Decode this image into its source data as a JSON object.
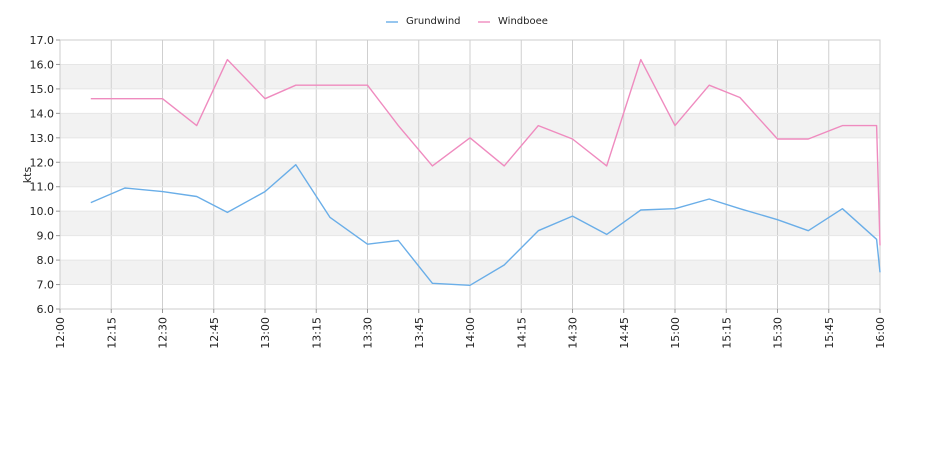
{
  "chart_data": {
    "type": "line",
    "title": "",
    "xlabel": "",
    "ylabel": "kts",
    "x_range": [
      "12:00",
      "16:00"
    ],
    "ylim": [
      6.0,
      17.0
    ],
    "y_ticks": [
      "6.0",
      "7.0",
      "8.0",
      "9.0",
      "10.0",
      "11.0",
      "12.0",
      "13.0",
      "14.0",
      "15.0",
      "16.0",
      "17.0"
    ],
    "x_ticks": [
      "12:00",
      "12:15",
      "12:30",
      "12:45",
      "13:00",
      "13:15",
      "13:30",
      "13:45",
      "14:00",
      "14:15",
      "14:30",
      "14:45",
      "15:00",
      "15:15",
      "15:30",
      "15:45",
      "16:00"
    ],
    "grid": true,
    "legend_position": "top-center",
    "series": [
      {
        "name": "Grundwind",
        "color": "#6aaee8",
        "x": [
          "12:09",
          "12:19",
          "12:30",
          "12:40",
          "12:49",
          "13:00",
          "13:09",
          "13:19",
          "13:30",
          "13:39",
          "13:49",
          "14:00",
          "14:10",
          "14:20",
          "14:30",
          "14:40",
          "14:50",
          "15:00",
          "15:10",
          "15:19",
          "15:30",
          "15:39",
          "15:49",
          "15:59",
          "16:00"
        ],
        "values": [
          10.35,
          10.95,
          10.8,
          10.6,
          9.95,
          10.8,
          11.9,
          9.75,
          8.65,
          8.8,
          7.05,
          6.97,
          7.8,
          9.2,
          9.8,
          9.05,
          10.05,
          10.1,
          10.5,
          10.1,
          9.65,
          9.2,
          10.1,
          8.85,
          7.5
        ]
      },
      {
        "name": "Windboee",
        "color": "#ef8bbf",
        "x": [
          "12:09",
          "12:19",
          "12:30",
          "12:40",
          "12:49",
          "13:00",
          "13:09",
          "13:19",
          "13:30",
          "13:39",
          "13:49",
          "14:00",
          "14:10",
          "14:20",
          "14:30",
          "14:40",
          "14:50",
          "15:00",
          "15:10",
          "15:19",
          "15:30",
          "15:39",
          "15:49",
          "15:59",
          "16:00"
        ],
        "values": [
          14.6,
          14.6,
          14.6,
          13.5,
          16.2,
          14.6,
          15.15,
          15.15,
          15.15,
          13.5,
          11.85,
          13.0,
          11.85,
          13.5,
          12.95,
          11.85,
          16.2,
          13.5,
          15.15,
          14.65,
          12.95,
          12.95,
          13.5,
          13.5,
          8.6
        ]
      }
    ]
  }
}
